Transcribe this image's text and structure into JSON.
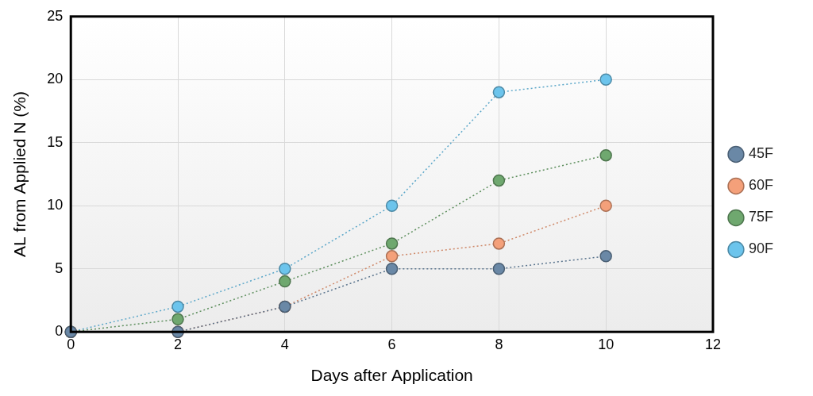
{
  "chart_data": {
    "type": "line",
    "x_label": "Days after Application",
    "y_label": "AL from Applied N (%)",
    "x": [
      0,
      2,
      4,
      6,
      8,
      10
    ],
    "series": [
      {
        "name": "45F",
        "color": "#6a88a6",
        "values": [
          0,
          0,
          2,
          5,
          5,
          6
        ]
      },
      {
        "name": "60F",
        "color": "#f4a07a",
        "values": [
          0,
          0,
          2,
          6,
          7,
          10
        ]
      },
      {
        "name": "75F",
        "color": "#6fa86f",
        "values": [
          0,
          1,
          4,
          7,
          12,
          14
        ]
      },
      {
        "name": "90F",
        "color": "#6cc4ec",
        "values": [
          0,
          2,
          5,
          10,
          19,
          20
        ]
      }
    ],
    "xlim": [
      0,
      12
    ],
    "xticks": [
      0,
      2,
      4,
      6,
      8,
      10,
      12
    ],
    "ylim": [
      0,
      25
    ],
    "yticks": [
      0,
      5,
      10,
      15,
      20,
      25
    ],
    "grid": true,
    "legend": "right",
    "marker": "circle",
    "line_style": "dotted"
  }
}
